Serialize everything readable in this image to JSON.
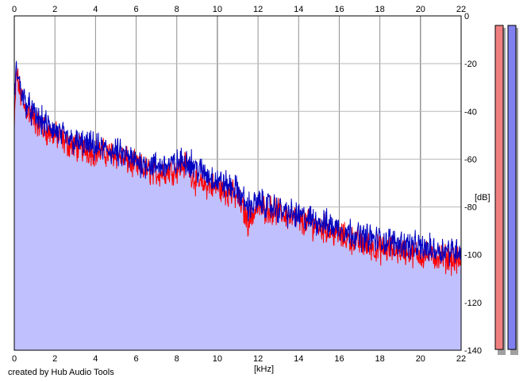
{
  "credit": "created by Hub Audio Tools",
  "chart_data": {
    "type": "area",
    "xlabel": "[kHz]",
    "ylabel": "[dB]",
    "xlim": [
      0,
      22
    ],
    "ylim": [
      -140,
      0
    ],
    "x_ticks": [
      0,
      2,
      4,
      6,
      8,
      10,
      12,
      14,
      16,
      18,
      20,
      22
    ],
    "y_ticks": [
      0,
      -20,
      -40,
      -60,
      -80,
      -100,
      -120,
      -140
    ],
    "grid": true,
    "colors": {
      "fill": "#c0c0ff",
      "channel_a": "#ff0000",
      "channel_b": "#0000c0",
      "meter_a": "#f08080",
      "meter_b": "#8080f0"
    },
    "series": [
      {
        "x": [
          0,
          0.1,
          0.2,
          0.3,
          0.5,
          0.7,
          1,
          1.5,
          2,
          2.5,
          3,
          4,
          5,
          6,
          7,
          8,
          8.5,
          9,
          10,
          11,
          11.5,
          12,
          13,
          14,
          15,
          16,
          17,
          18,
          19,
          20,
          21,
          22
        ],
        "values": [
          -48,
          -24,
          -28,
          -33,
          -38,
          -40,
          -44,
          -48,
          -50,
          -53,
          -55,
          -57,
          -58,
          -63,
          -66,
          -64,
          -62,
          -70,
          -72,
          -76,
          -86,
          -80,
          -82,
          -86,
          -88,
          -92,
          -95,
          -98,
          -98,
          -100,
          -101,
          -103
        ]
      },
      {
        "x": [
          0,
          0.1,
          0.2,
          0.3,
          0.5,
          0.7,
          1,
          1.5,
          2,
          2.5,
          3,
          4,
          5,
          6,
          7,
          8,
          8.5,
          9,
          10,
          11,
          11.5,
          12,
          13,
          14,
          15,
          16,
          17,
          18,
          19,
          20,
          21,
          22
        ],
        "values": [
          -36,
          -22,
          -26,
          -30,
          -35,
          -38,
          -42,
          -45,
          -48,
          -51,
          -53,
          -55,
          -57,
          -61,
          -63,
          -62,
          -60,
          -64,
          -69,
          -73,
          -80,
          -78,
          -81,
          -84,
          -86,
          -89,
          -92,
          -94,
          -95,
          -97,
          -98,
          -98
        ]
      }
    ]
  }
}
